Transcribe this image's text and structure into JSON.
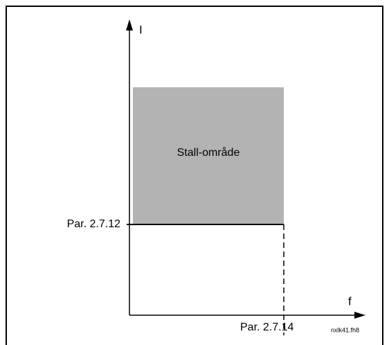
{
  "diagram": {
    "y_axis_label": "I",
    "x_axis_label": "f",
    "region_label": "Stall-område",
    "current_limit_label": "Par. 2.7.12",
    "frequency_limit_label": "Par. 2.7.14",
    "file_id": "nxlk41.fh8"
  }
}
